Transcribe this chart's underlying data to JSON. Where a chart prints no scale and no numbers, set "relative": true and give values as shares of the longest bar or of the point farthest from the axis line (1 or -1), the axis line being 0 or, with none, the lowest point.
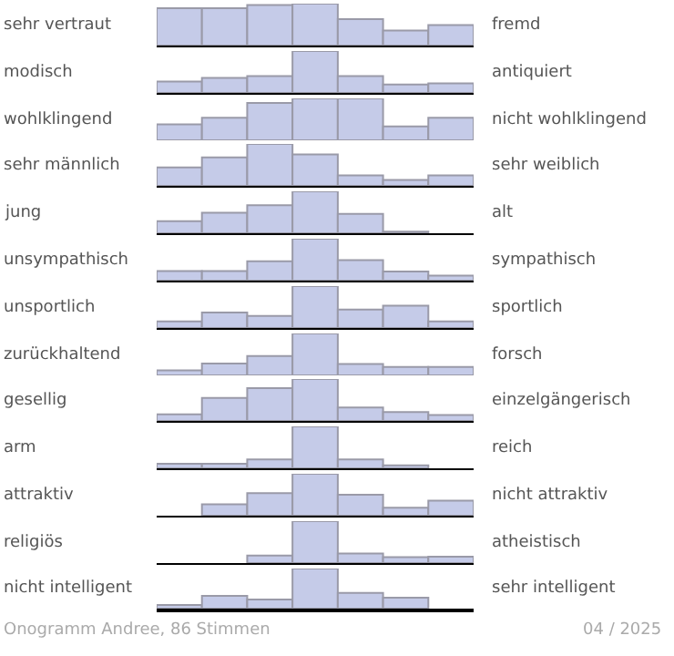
{
  "chart_data": [
    {
      "type": "bar",
      "relative": true,
      "categories": [
        null,
        null,
        null,
        null,
        null,
        null,
        null
      ],
      "values": [
        0.89,
        0.89,
        0.97,
        1,
        0.63,
        0.36,
        0.49
      ],
      "color": "#c5cbe8",
      "annotations": [
        "sehr vertraut",
        "fremd"
      ]
    },
    {
      "type": "bar",
      "relative": true,
      "categories": [
        null,
        null,
        null,
        null,
        null,
        null,
        null
      ],
      "values": [
        0.27,
        0.36,
        0.4,
        1,
        0.4,
        0.2,
        0.23
      ],
      "color": "#c5cbe8",
      "annotations": [
        "modisch",
        "antiquiert"
      ]
    },
    {
      "type": "bar",
      "relative": true,
      "categories": [
        null,
        null,
        null,
        null,
        null,
        null,
        null
      ],
      "values": [
        0.38,
        0.54,
        0.89,
        1,
        1,
        0.33,
        0.54
      ],
      "color": "#c5cbe8",
      "annotations": [
        "wohlklingend",
        "nicht wohlklingend"
      ]
    },
    {
      "type": "bar",
      "relative": true,
      "categories": [
        null,
        null,
        null,
        null,
        null,
        null,
        null
      ],
      "values": [
        0.44,
        0.68,
        1,
        0.75,
        0.25,
        0.14,
        0.25
      ],
      "color": "#c5cbe8",
      "annotations": [
        "sehr männlich",
        "sehr weiblich"
      ]
    },
    {
      "type": "bar",
      "relative": true,
      "categories": [
        null,
        null,
        null,
        null,
        null,
        null,
        null
      ],
      "values": [
        0.29,
        0.49,
        0.67,
        1,
        0.46,
        0.04,
        0
      ],
      "color": "#c5cbe8",
      "annotations": [
        "jung",
        "alt"
      ]
    },
    {
      "type": "bar",
      "relative": true,
      "categories": [
        null,
        null,
        null,
        null,
        null,
        null,
        null
      ],
      "values": [
        0.23,
        0.23,
        0.46,
        1,
        0.49,
        0.22,
        0.12
      ],
      "color": "#c5cbe8",
      "annotations": [
        "unsympathisch",
        "sympathisch"
      ]
    },
    {
      "type": "bar",
      "relative": true,
      "categories": [
        null,
        null,
        null,
        null,
        null,
        null,
        null
      ],
      "values": [
        0.16,
        0.37,
        0.29,
        1,
        0.44,
        0.53,
        0.16
      ],
      "color": "#c5cbe8",
      "annotations": [
        "unsportlich",
        "sportlich"
      ]
    },
    {
      "type": "bar",
      "relative": true,
      "categories": [
        null,
        null,
        null,
        null,
        null,
        null,
        null
      ],
      "values": [
        0.12,
        0.28,
        0.46,
        1,
        0.27,
        0.2,
        0.2
      ],
      "color": "#c5cbe8",
      "annotations": [
        "zurückhaltend",
        "forsch"
      ]
    },
    {
      "type": "bar",
      "relative": true,
      "categories": [
        null,
        null,
        null,
        null,
        null,
        null,
        null
      ],
      "values": [
        0.16,
        0.55,
        0.78,
        1,
        0.32,
        0.21,
        0.14
      ],
      "color": "#c5cbe8",
      "annotations": [
        "gesellig",
        "einzelgängerisch"
      ]
    },
    {
      "type": "bar",
      "relative": true,
      "categories": [
        null,
        null,
        null,
        null,
        null,
        null,
        null
      ],
      "values": [
        0.11,
        0.11,
        0.21,
        1,
        0.21,
        0.07,
        0
      ],
      "color": "#c5cbe8",
      "annotations": [
        "arm",
        "reich"
      ]
    },
    {
      "type": "bar",
      "relative": true,
      "categories": [
        null,
        null,
        null,
        null,
        null,
        null,
        null
      ],
      "values": [
        0,
        0.27,
        0.54,
        1,
        0.5,
        0.19,
        0.36
      ],
      "color": "#c5cbe8",
      "annotations": [
        "attraktiv",
        "nicht attraktiv"
      ]
    },
    {
      "type": "bar",
      "relative": true,
      "categories": [
        null,
        null,
        null,
        null,
        null,
        null,
        null
      ],
      "values": [
        0,
        0,
        0.18,
        1,
        0.23,
        0.14,
        0.15
      ],
      "color": "#c5cbe8",
      "annotations": [
        "religiös",
        "atheistisch"
      ]
    },
    {
      "type": "bar",
      "relative": true,
      "categories": [
        null,
        null,
        null,
        null,
        null,
        null,
        null
      ],
      "values": [
        0.09,
        0.32,
        0.23,
        1,
        0.39,
        0.27,
        0
      ],
      "color": "#c5cbe8",
      "annotations": [
        "nicht intelligent",
        "sehr intelligent",
        "Onogramm Andree, 86 Stimmen",
        "04 / 2025"
      ]
    }
  ]
}
